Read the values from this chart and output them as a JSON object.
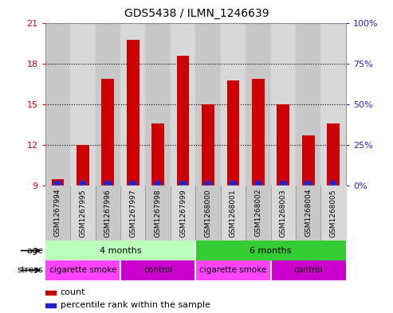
{
  "title": "GDS5438 / ILMN_1246639",
  "samples": [
    "GSM1267994",
    "GSM1267995",
    "GSM1267996",
    "GSM1267997",
    "GSM1267998",
    "GSM1267999",
    "GSM1268000",
    "GSM1268001",
    "GSM1268002",
    "GSM1268003",
    "GSM1268004",
    "GSM1268005"
  ],
  "counts": [
    9.5,
    12.0,
    16.9,
    19.8,
    13.6,
    18.6,
    15.0,
    16.8,
    16.9,
    15.0,
    12.7,
    13.6
  ],
  "percentile_ranks": [
    2,
    2,
    2,
    5,
    2,
    5,
    2,
    2,
    2,
    2,
    2,
    2
  ],
  "ylim_left": [
    9,
    21
  ],
  "ylim_right": [
    0,
    100
  ],
  "yticks_left": [
    9,
    12,
    15,
    18,
    21
  ],
  "yticks_right": [
    0,
    25,
    50,
    75,
    100
  ],
  "bar_color_red": "#cc0000",
  "bar_color_blue": "#2222cc",
  "age_groups": [
    {
      "label": "4 months",
      "start": 0,
      "end": 6,
      "color": "#bbffbb"
    },
    {
      "label": "6 months",
      "start": 6,
      "end": 12,
      "color": "#33cc33"
    }
  ],
  "stress_groups": [
    {
      "label": "cigarette smoke",
      "start": 0,
      "end": 3,
      "color": "#ff44ff"
    },
    {
      "label": "control",
      "start": 3,
      "end": 6,
      "color": "#cc00cc"
    },
    {
      "label": "cigarette smoke",
      "start": 6,
      "end": 9,
      "color": "#ff44ff"
    },
    {
      "label": "control",
      "start": 9,
      "end": 12,
      "color": "#cc00cc"
    }
  ],
  "legend_items": [
    {
      "label": "count",
      "color": "#cc0000"
    },
    {
      "label": "percentile rank within the sample",
      "color": "#2222cc"
    }
  ],
  "base_value": 9.0,
  "background_color": "#ffffff",
  "tick_color_left": "#cc0000",
  "tick_color_right": "#2222cc",
  "sample_bg_even": "#c8c8c8",
  "sample_bg_odd": "#d8d8d8"
}
